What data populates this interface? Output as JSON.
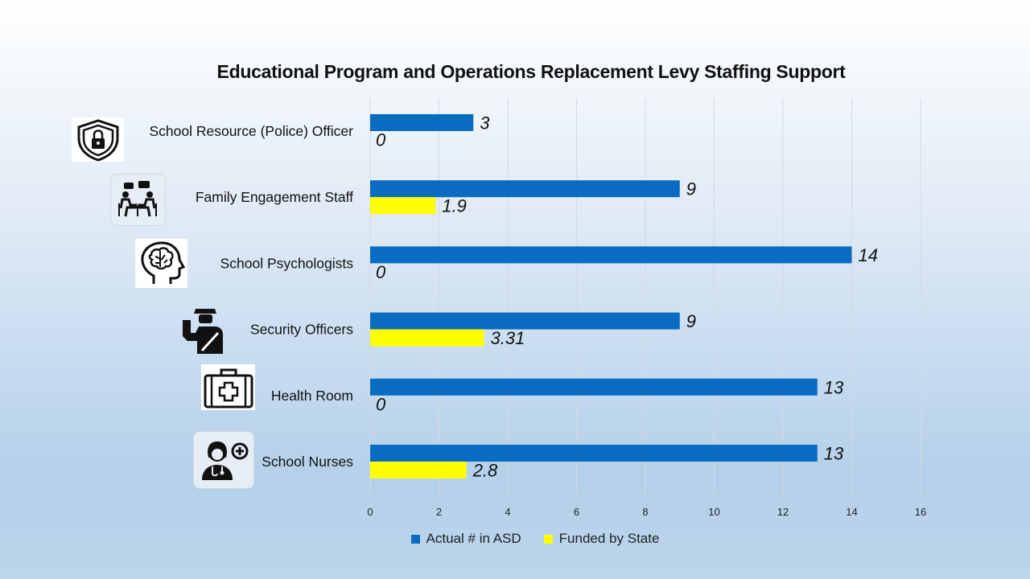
{
  "chart_data": {
    "type": "bar",
    "orientation": "horizontal",
    "title": "Educational Program and Operations Replacement Levy Staffing Support",
    "categories": [
      "School Resource (Police) Officer",
      "Family Engagement Staff",
      "School Psychologists",
      "Security Officers",
      "Health Room",
      "School Nurses"
    ],
    "series": [
      {
        "name": "Actual # in ASD",
        "color": "#0a6cc0",
        "values": [
          3,
          9,
          14,
          9,
          13,
          13
        ],
        "labels": [
          "3",
          "9",
          "14",
          "9",
          "13",
          "13"
        ]
      },
      {
        "name": "Funded by State",
        "color": "#ffff00",
        "values": [
          0,
          1.9,
          0,
          3.31,
          0,
          2.8
        ],
        "labels": [
          "0",
          "1.9",
          "0",
          "3.31",
          "0",
          "2.8"
        ]
      }
    ],
    "xlim": [
      0,
      16
    ],
    "xticks": [
      0,
      2,
      4,
      6,
      8,
      10,
      12,
      14,
      16
    ],
    "grid": true,
    "legend_position": "bottom"
  },
  "icons": [
    "shield-lock-icon",
    "family-meeting-icon",
    "brain-head-icon",
    "security-guard-icon",
    "first-aid-kit-icon",
    "nurse-icon"
  ]
}
